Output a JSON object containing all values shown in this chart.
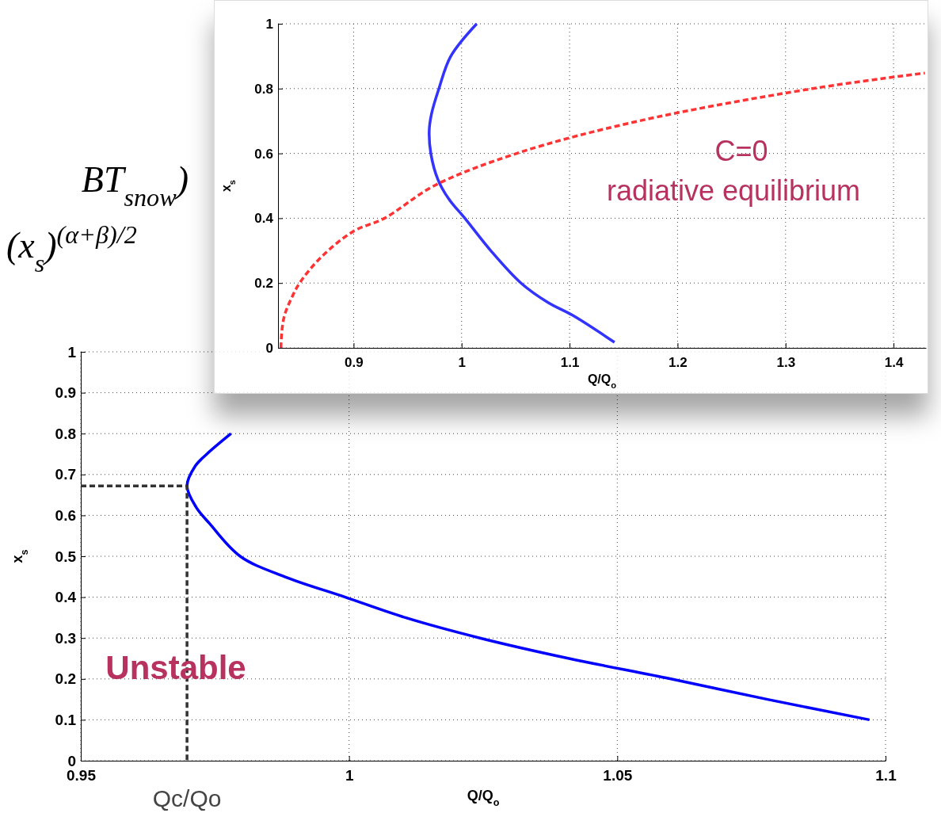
{
  "chart_data": [
    {
      "type": "line",
      "xlabel": "Q/Q$_{o}$",
      "ylabel": "x$_{s}$",
      "xlim": [
        0.83,
        1.43
      ],
      "ylim": [
        0,
        1
      ],
      "xticks": [
        0.9,
        1,
        1.1,
        1.2,
        1.3,
        1.4
      ],
      "yticks": [
        0,
        0.2,
        0.4,
        0.6,
        0.8,
        1
      ],
      "grid": true,
      "series": [
        {
          "color": "#3333ff",
          "line_style": "solid",
          "x": [
            1.014,
            0.99,
            0.979,
            0.972,
            0.97,
            0.9715,
            0.978,
            0.988,
            1.003,
            1.027,
            1.055,
            1.08,
            1.103,
            1.1416
          ],
          "values": [
            1,
            0.9,
            0.8,
            0.72,
            0.67,
            0.6,
            0.52,
            0.46,
            0.4,
            0.3,
            0.2,
            0.14,
            0.1,
            0.017
          ]
        },
        {
          "color": "#ff3333",
          "line_style": "dashed",
          "x": [
            0.8327,
            0.8335,
            0.836,
            0.842,
            0.85,
            0.87,
            0.9,
            0.9286,
            0.9745,
            1.051,
            1.164,
            1.325,
            1.429
          ],
          "values": [
            0,
            0.05,
            0.1,
            0.15,
            0.2,
            0.28,
            0.36,
            0.4,
            0.5,
            0.6,
            0.7,
            0.8,
            0.848
          ]
        }
      ],
      "annotations": [
        "C=0",
        "radiative equilibrium"
      ]
    },
    {
      "type": "line",
      "xlabel": "Q/Q$_{o}$",
      "ylabel": "x$_{s}$",
      "xlim": [
        0.95,
        1.1
      ],
      "ylim": [
        0,
        1
      ],
      "xticks": [
        0.95,
        1,
        1.05,
        1.1
      ],
      "yticks": [
        0,
        0.1,
        0.2,
        0.3,
        0.4,
        0.5,
        0.6,
        0.7,
        0.8,
        0.9,
        1
      ],
      "grid": true,
      "series": [
        {
          "color": "#0000ff",
          "line_style": "solid",
          "x": [
            0.978,
            0.9735,
            0.9713,
            0.9698,
            0.9715,
            0.974,
            0.9797,
            0.988,
            0.9993,
            1.0105,
            1.0244,
            1.041,
            1.06,
            1.078,
            1.097
          ],
          "values": [
            0.8,
            0.75,
            0.72,
            0.672,
            0.62,
            0.58,
            0.5,
            0.45,
            0.4,
            0.35,
            0.3,
            0.25,
            0.2,
            0.15,
            0.1
          ]
        },
        {
          "color": "#333333",
          "line_style": "dashed",
          "x": [
            0.95,
            0.9698,
            0.9698
          ],
          "values": [
            0.672,
            0.672,
            0
          ]
        }
      ],
      "annotations": [
        "Unstable",
        {
          "text": "Qc/Qo",
          "x": 0.9698,
          "y": 0
        },
        "BT$_{snow}$)",
        "(x$_{s}$)$^{(α+β)/2}$"
      ]
    }
  ]
}
